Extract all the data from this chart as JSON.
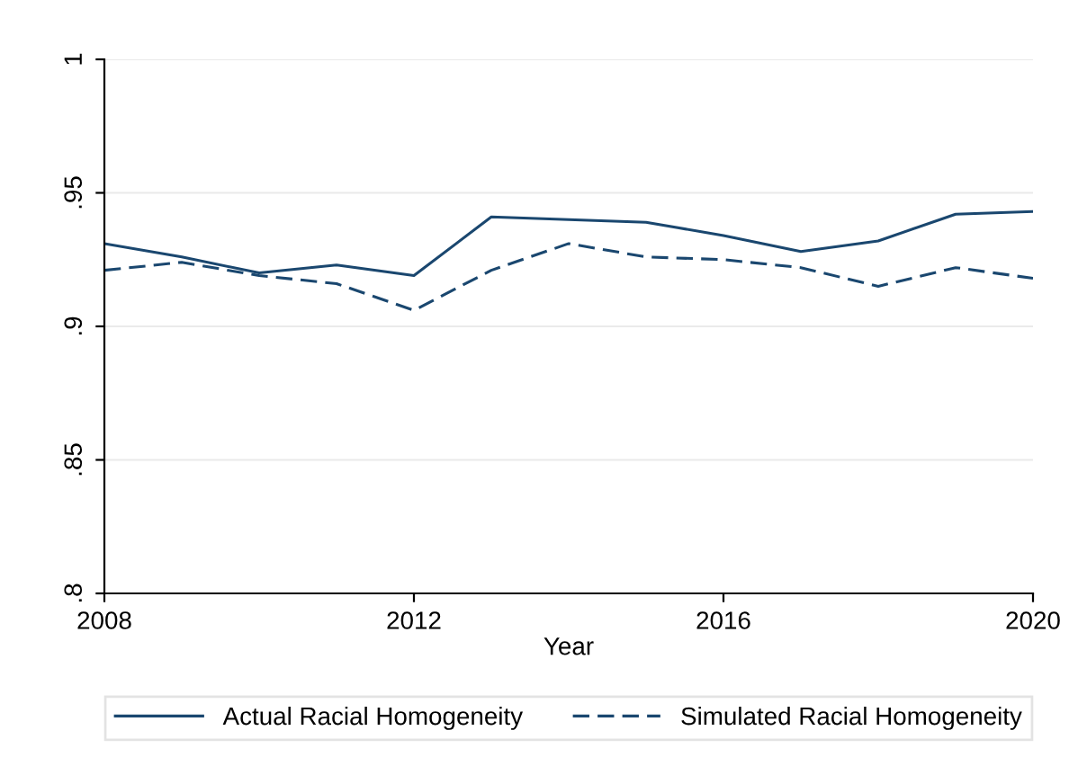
{
  "chart_data": {
    "type": "line",
    "xlabel": "Year",
    "x": [
      2008,
      2009,
      2010,
      2011,
      2012,
      2013,
      2014,
      2015,
      2016,
      2017,
      2018,
      2019,
      2020
    ],
    "series": [
      {
        "name": "Actual Racial Homogeneity",
        "color": "#1a476f",
        "line_style": "solid",
        "values": [
          0.931,
          0.926,
          0.92,
          0.923,
          0.919,
          0.941,
          0.94,
          0.939,
          0.934,
          0.928,
          0.932,
          0.942,
          0.943
        ]
      },
      {
        "name": "Simulated Racial Homogeneity",
        "color": "#1a476f",
        "line_style": "dashed",
        "values": [
          0.921,
          0.924,
          0.919,
          0.916,
          0.906,
          0.921,
          0.931,
          0.926,
          0.925,
          0.922,
          0.915,
          0.922,
          0.918
        ]
      }
    ],
    "xlim": [
      2008,
      2020
    ],
    "xticks": [
      2008,
      2012,
      2016,
      2020
    ],
    "ylim": [
      0.8,
      1
    ],
    "yticks": [
      {
        "value": 0.8,
        "label": ".8"
      },
      {
        "value": 0.85,
        "label": ".85"
      },
      {
        "value": 0.9,
        "label": ".9"
      },
      {
        "value": 0.95,
        "label": ".95"
      },
      {
        "value": 1,
        "label": "1"
      }
    ],
    "grid": "y",
    "legend": "bottom",
    "marker": "none"
  }
}
